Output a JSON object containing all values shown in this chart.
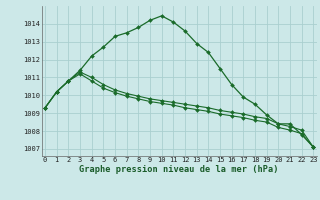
{
  "xlabel": "Graphe pression niveau de la mer (hPa)",
  "background_color": "#cce8e8",
  "grid_color": "#aacfcf",
  "line_color_main": "#1a6b2a",
  "line_color_flat": "#1a6b2a",
  "series1": {
    "x": [
      0,
      1,
      2,
      3,
      4,
      5,
      6,
      7,
      8,
      9,
      10,
      11,
      12,
      13,
      14,
      15,
      16,
      17,
      18,
      19,
      20,
      21,
      22,
      23
    ],
    "y": [
      1009.3,
      1010.2,
      1010.8,
      1011.4,
      1012.2,
      1012.7,
      1013.3,
      1013.5,
      1013.8,
      1014.2,
      1014.45,
      1014.1,
      1013.6,
      1012.9,
      1012.4,
      1011.5,
      1010.6,
      1009.9,
      1009.5,
      1008.9,
      1008.4,
      1008.4,
      1007.8,
      1007.1
    ]
  },
  "series2": {
    "x": [
      0,
      1,
      2,
      3,
      4,
      5,
      6,
      7,
      8,
      9,
      10,
      11,
      12,
      13,
      14,
      15,
      16,
      17,
      18,
      19,
      20,
      21,
      22,
      23
    ],
    "y": [
      1009.3,
      1010.2,
      1010.8,
      1011.3,
      1011.0,
      1010.6,
      1010.3,
      1010.1,
      1009.95,
      1009.8,
      1009.7,
      1009.6,
      1009.5,
      1009.4,
      1009.3,
      1009.15,
      1009.05,
      1008.95,
      1008.8,
      1008.7,
      1008.4,
      1008.25,
      1008.05,
      1007.1
    ]
  },
  "series3": {
    "x": [
      0,
      1,
      2,
      3,
      4,
      5,
      6,
      7,
      8,
      9,
      10,
      11,
      12,
      13,
      14,
      15,
      16,
      17,
      18,
      19,
      20,
      21,
      22,
      23
    ],
    "y": [
      1009.3,
      1010.2,
      1010.8,
      1011.2,
      1010.8,
      1010.4,
      1010.15,
      1009.95,
      1009.8,
      1009.65,
      1009.55,
      1009.45,
      1009.3,
      1009.2,
      1009.1,
      1008.95,
      1008.85,
      1008.75,
      1008.6,
      1008.5,
      1008.2,
      1008.05,
      1007.85,
      1007.1
    ]
  },
  "ylim": [
    1006.6,
    1015.0
  ],
  "yticks": [
    1007,
    1008,
    1009,
    1010,
    1011,
    1012,
    1013,
    1014
  ],
  "xlim": [
    -0.3,
    23.3
  ],
  "xticks": [
    0,
    1,
    2,
    3,
    4,
    5,
    6,
    7,
    8,
    9,
    10,
    11,
    12,
    13,
    14,
    15,
    16,
    17,
    18,
    19,
    20,
    21,
    22,
    23
  ]
}
